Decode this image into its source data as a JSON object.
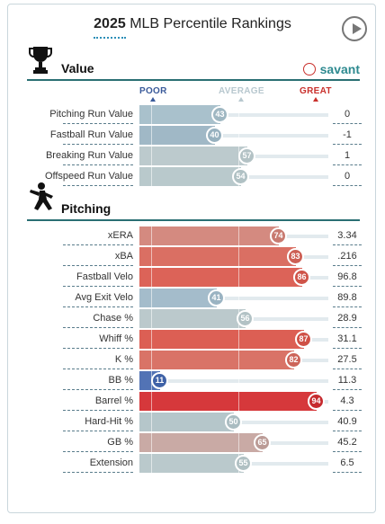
{
  "header": {
    "year": "2025",
    "title": "MLB Percentile Rankings"
  },
  "icons": {
    "play": "play-icon",
    "trophy": "trophy-icon",
    "pitcher": "pitcher-icon",
    "brand": "baseball-icon"
  },
  "scale": {
    "poor": "POOR",
    "average": "AVERAGE",
    "great": "GREAT"
  },
  "colors": {
    "section_rule": "#2a6f73",
    "poor": "#3a5a9a",
    "average": "#b8c8cf",
    "great": "#c9302c"
  },
  "sections": [
    {
      "title": "Value",
      "brand": "savant",
      "rows": [
        {
          "label": "Pitching Run Value",
          "percentile": 43,
          "value": "0",
          "fill": "#a9c1cc",
          "circle": "#9fb7c2"
        },
        {
          "label": "Fastball Run Value",
          "percentile": 40,
          "value": "-1",
          "fill": "#a0b8c6",
          "circle": "#97b1bf"
        },
        {
          "label": "Breaking Run Value",
          "percentile": 57,
          "value": "1",
          "fill": "#bccacd",
          "circle": "#b3c2c5"
        },
        {
          "label": "Offspeed Run Value",
          "percentile": 54,
          "value": "0",
          "fill": "#b9c9cc",
          "circle": "#b0c1c4"
        }
      ]
    },
    {
      "title": "Pitching",
      "rows": [
        {
          "label": "xERA",
          "percentile": 74,
          "value": "3.34",
          "fill": "#d48a80",
          "circle": "#c87a70"
        },
        {
          "label": "xBA",
          "percentile": 83,
          "value": ".216",
          "fill": "#da6f63",
          "circle": "#cd5f54"
        },
        {
          "label": "Fastball Velo",
          "percentile": 86,
          "value": "96.8",
          "fill": "#dc6358",
          "circle": "#cf5449"
        },
        {
          "label": "Avg Exit Velo",
          "percentile": 41,
          "value": "89.8",
          "fill": "#a4bccb",
          "circle": "#9ab3c2"
        },
        {
          "label": "Chase %",
          "percentile": 56,
          "value": "28.9",
          "fill": "#bbc9cc",
          "circle": "#b2c2c5"
        },
        {
          "label": "Whiff %",
          "percentile": 87,
          "value": "31.1",
          "fill": "#dc5f54",
          "circle": "#cf5046"
        },
        {
          "label": "K %",
          "percentile": 82,
          "value": "27.5",
          "fill": "#d97367",
          "circle": "#cc6459"
        },
        {
          "label": "BB %",
          "percentile": 11,
          "value": "11.3",
          "fill": "#5273b5",
          "circle": "#3f62a7"
        },
        {
          "label": "Barrel %",
          "percentile": 94,
          "value": "4.3",
          "fill": "#d6383b",
          "circle": "#c62a2e"
        },
        {
          "label": "Hard-Hit %",
          "percentile": 50,
          "value": "40.9",
          "fill": "#b5c6ca",
          "circle": "#aabcc1"
        },
        {
          "label": "GB %",
          "percentile": 65,
          "value": "45.2",
          "fill": "#c9aaa5",
          "circle": "#bb9b96"
        },
        {
          "label": "Extension",
          "percentile": 55,
          "value": "6.5",
          "fill": "#bac9cc",
          "circle": "#b0c0c3"
        }
      ]
    }
  ]
}
